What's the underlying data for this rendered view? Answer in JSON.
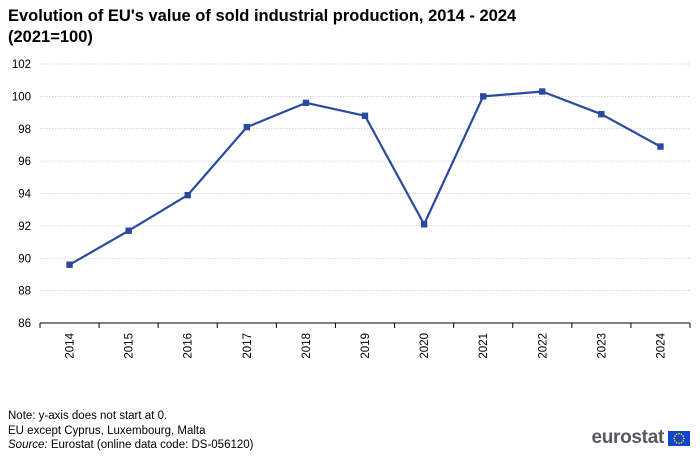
{
  "title_line1": "Evolution of EU's value of sold industrial production, 2014 - 2024",
  "title_line2": "(2021=100)",
  "notes": {
    "line1": "Note: y-axis does not start at 0.",
    "line2": "EU except Cyprus,  Luxembourg,  Malta",
    "source_label": "Source:",
    "source_text": " Eurostat (online data code: DS-056120)"
  },
  "logo": {
    "text": "eurostat",
    "flag_color": "#0e47cb",
    "star_color": "#ffd617"
  },
  "chart_data": {
    "type": "line",
    "title": "Evolution of EU's value of sold industrial production, 2014 - 2024 (2021=100)",
    "x": [
      "2014",
      "2015",
      "2016",
      "2017",
      "2018",
      "2019",
      "2020",
      "2021",
      "2022",
      "2023",
      "2024"
    ],
    "series": [
      {
        "values": [
          89.6,
          91.7,
          93.9,
          98.1,
          99.6,
          98.8,
          92.1,
          100.0,
          100.3,
          98.9,
          96.9
        ],
        "color": "#2a4b9d"
      }
    ],
    "xlabel": "",
    "ylabel": "",
    "ylim": [
      86,
      102
    ],
    "yticks": [
      86,
      88,
      90,
      92,
      94,
      96,
      98,
      100,
      102
    ],
    "grid": true,
    "legend": "none"
  }
}
